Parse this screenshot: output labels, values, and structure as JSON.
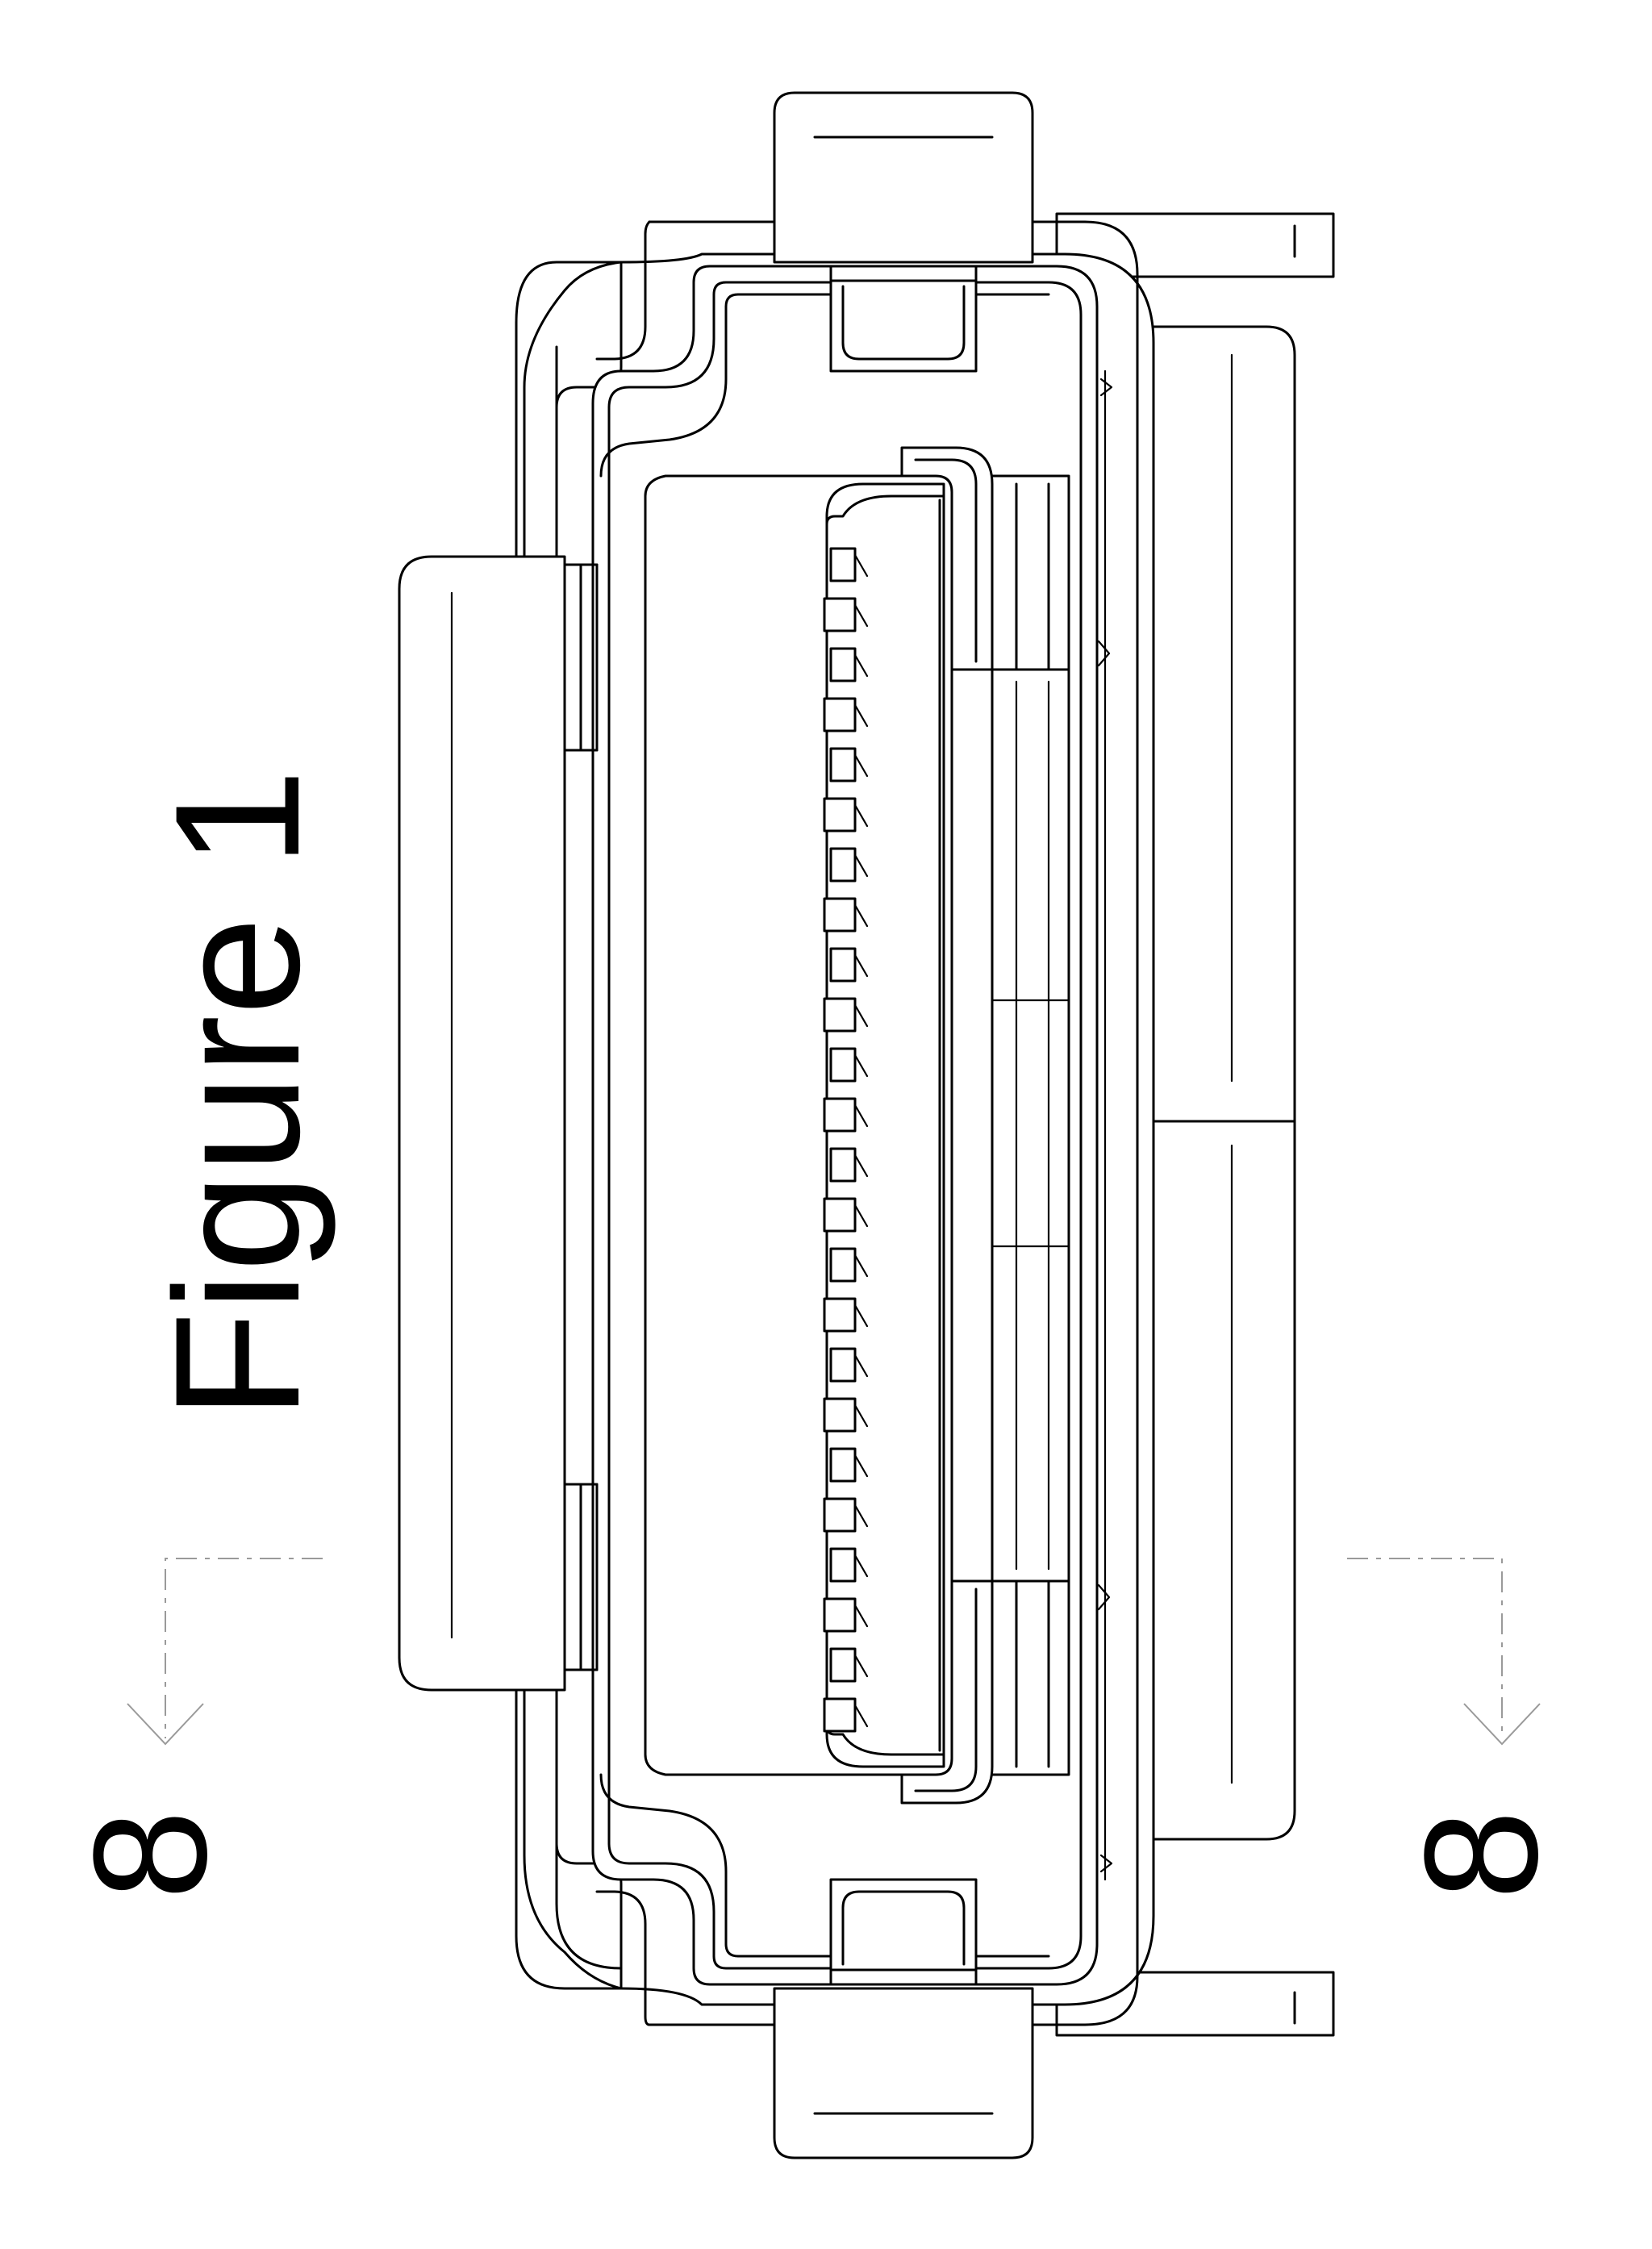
{
  "figure": {
    "title": "Figure 1"
  },
  "section_marks": {
    "left_label": "8",
    "right_label": "8"
  },
  "colors": {
    "line": "#000000",
    "section_line": "#9a9a9a",
    "background": "#ffffff"
  }
}
